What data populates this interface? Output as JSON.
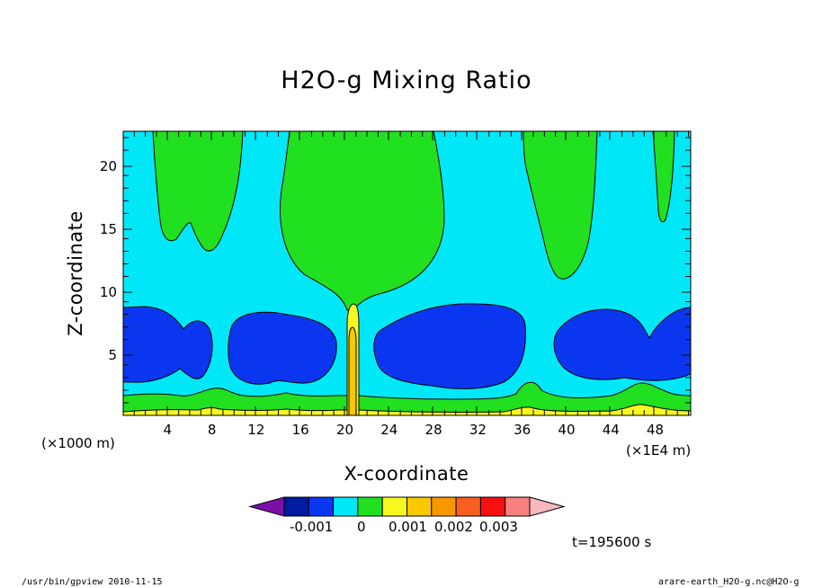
{
  "figure": {
    "title": "H2O-g Mixing Ratio",
    "xlabel": "X-coordinate",
    "ylabel": "Z-coordinate",
    "x_unit_left": "(×1000 m)",
    "x_unit_right": "(×1E4 m)",
    "time_label": "t=195600 s",
    "footer_left": "/usr/bin/gpview  2010-11-15",
    "footer_right": "arare-earth_H2O-g.nc@H2O-g"
  },
  "colorbar": {
    "colors": [
      "#7a10a8",
      "#001aa0",
      "#0a36f0",
      "#00e8f8",
      "#20e020",
      "#f8f820",
      "#f8c800",
      "#f89800",
      "#f86020",
      "#f81010",
      "#f88080",
      "#f8b8c0"
    ],
    "labels": [
      "-0.001",
      "0",
      "0.001",
      "0.002",
      "0.003"
    ]
  },
  "chart_data": {
    "type": "heatmap",
    "title": "H2O-g Mixing Ratio",
    "xlabel": "X-coordinate",
    "ylabel": "Z-coordinate",
    "x_ticks": [
      "4",
      "8",
      "12",
      "16",
      "20",
      "24",
      "28",
      "32",
      "36",
      "40",
      "44",
      "48"
    ],
    "y_ticks": [
      "5",
      "10",
      "15",
      "20"
    ],
    "xlim": [
      0,
      51.2
    ],
    "ylim": [
      0,
      22.5
    ],
    "levels": [
      -0.0015,
      -0.001,
      -0.0005,
      0,
      0.0005,
      0.001,
      0.0015,
      0.002,
      0.0025,
      0.003,
      0.0035
    ],
    "level_colors": {
      "dark_blue": "#0a36f0",
      "cyan": "#00e8f8",
      "green": "#20e020",
      "yellow": "#f8f820"
    }
  }
}
